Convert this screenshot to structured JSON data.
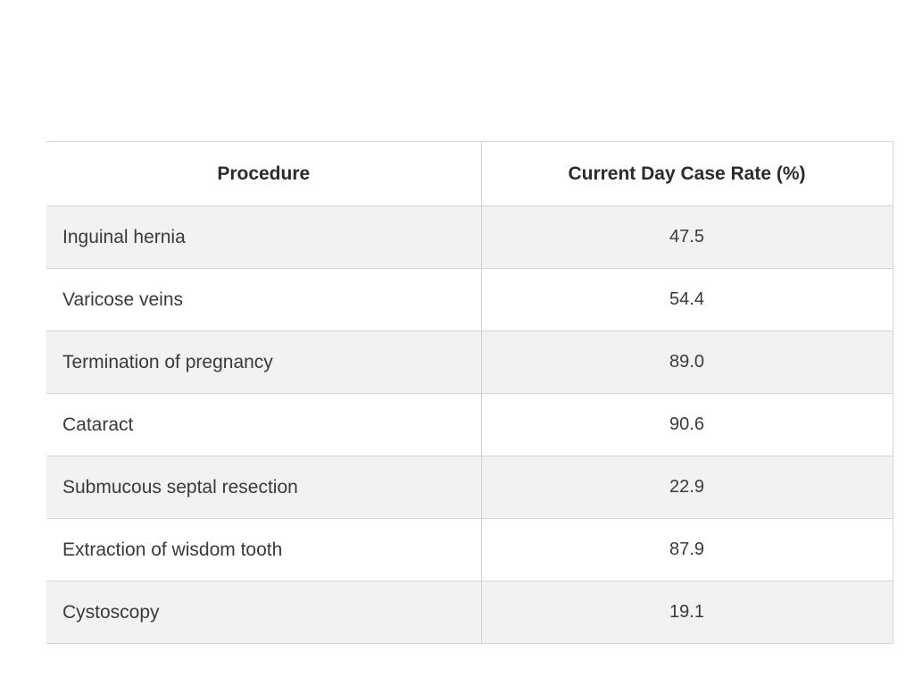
{
  "table": {
    "headers": [
      "Procedure",
      "Current Day Case Rate (%)"
    ],
    "rows": [
      {
        "procedure": "Inguinal hernia",
        "rate": "47.5"
      },
      {
        "procedure": "Varicose veins",
        "rate": "54.4"
      },
      {
        "procedure": "Termination of pregnancy",
        "rate": "89.0"
      },
      {
        "procedure": "Cataract",
        "rate": "90.6"
      },
      {
        "procedure": "Submucous septal resection",
        "rate": "22.9"
      },
      {
        "procedure": "Extraction of wisdom tooth",
        "rate": "87.9"
      },
      {
        "procedure": "Cystoscopy",
        "rate": "19.1"
      }
    ]
  },
  "colors": {
    "stripe": "#f2f2f2",
    "border": "#d4d4d4",
    "text": "#3a3a3a"
  }
}
